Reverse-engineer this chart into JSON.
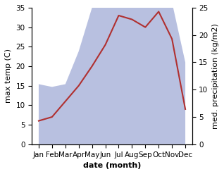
{
  "months": [
    "Jan",
    "Feb",
    "Mar",
    "Apr",
    "May",
    "Jun",
    "Jul",
    "Aug",
    "Sep",
    "Oct",
    "Nov",
    "Dec"
  ],
  "temp_line": [
    6,
    7,
    11,
    15,
    20,
    25.5,
    33,
    32,
    30,
    34,
    27,
    9
  ],
  "precip_area": [
    11,
    10.5,
    11,
    17,
    25,
    29,
    28,
    30,
    34,
    27,
    26,
    15
  ],
  "temp_color": "#b03030",
  "precip_color": "#b8c0e0",
  "ylabel_left": "max temp (C)",
  "ylabel_right": "med. precipitation (kg/m2)",
  "xlabel": "date (month)",
  "ylim_left": [
    0,
    35
  ],
  "ylim_right": [
    0,
    25
  ],
  "label_fontsize": 8,
  "tick_fontsize": 7.5
}
